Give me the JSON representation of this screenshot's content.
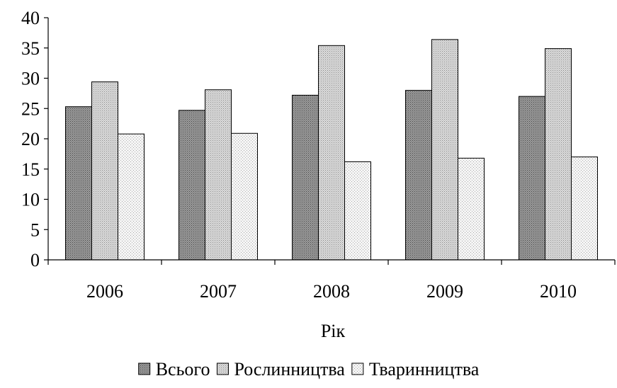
{
  "chart_data": {
    "type": "bar",
    "title": "",
    "xlabel": "Рік",
    "ylabel": "",
    "ylim": [
      0,
      40
    ],
    "yticks": [
      0,
      5,
      10,
      15,
      20,
      25,
      30,
      35,
      40
    ],
    "categories": [
      "2006",
      "2007",
      "2008",
      "2009",
      "2010"
    ],
    "series": [
      {
        "name": "Всього",
        "values": [
          25.3,
          24.7,
          27.2,
          28.0,
          27.0
        ],
        "fill": "dark-stipple"
      },
      {
        "name": "Рослинництва",
        "values": [
          29.4,
          28.1,
          35.4,
          36.4,
          34.9
        ],
        "fill": "medium-stipple"
      },
      {
        "name": "Тваринництва",
        "values": [
          20.8,
          20.9,
          16.2,
          16.8,
          17.0
        ],
        "fill": "light-stipple"
      }
    ],
    "grid": false,
    "legend": "bottom",
    "colors": {
      "axis": "#000000",
      "bar_edge": "#000000",
      "background": "#ffffff"
    }
  }
}
